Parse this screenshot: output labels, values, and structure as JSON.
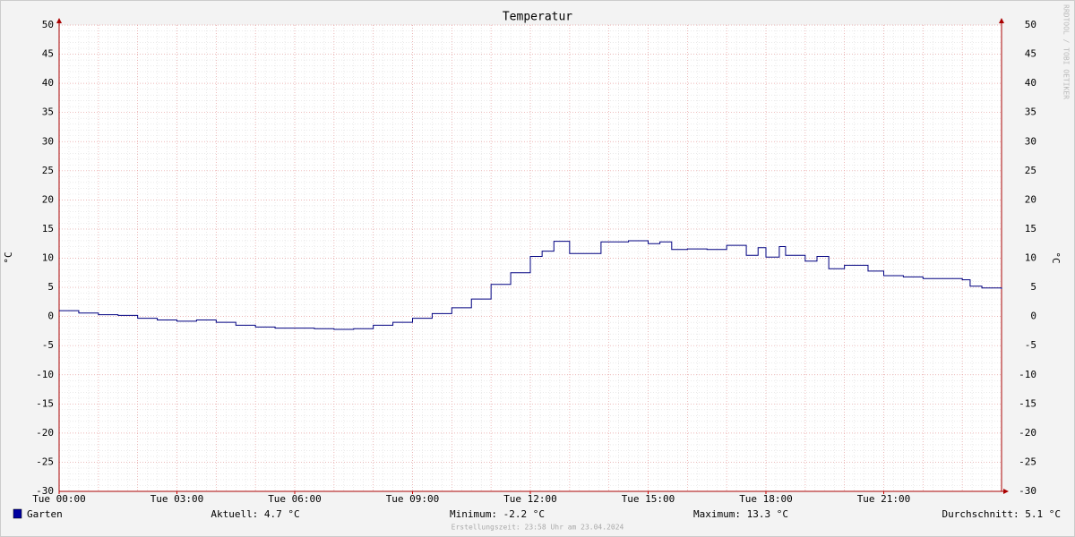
{
  "chart_data": {
    "type": "line",
    "title": "Temperatur",
    "ylabel": "°C",
    "y2label": "°C",
    "watermark": "RRDTOOL / TOBI OETIKER",
    "x": [
      0,
      0.5,
      1,
      1.5,
      2,
      2.5,
      3,
      3.5,
      4,
      4.5,
      5,
      5.5,
      6,
      6.5,
      7,
      7.5,
      8,
      8.5,
      9,
      9.5,
      10,
      10.5,
      11,
      11.5,
      12,
      12.3,
      12.6,
      13,
      13.5,
      13.8,
      14.5,
      15,
      15.3,
      15.6,
      16,
      16.5,
      17,
      17.5,
      17.8,
      18,
      18.34,
      18.5,
      19,
      19.3,
      19.6,
      20,
      20.3,
      20.6,
      21,
      21.5,
      22,
      22.5,
      23,
      23.2,
      23.5,
      24
    ],
    "series": [
      {
        "name": "Garten",
        "color": "#000080",
        "legend_color": "#0000a0",
        "values": [
          1.0,
          0.6,
          0.3,
          0.2,
          -0.3,
          -0.6,
          -0.8,
          -0.6,
          -1.0,
          -1.5,
          -1.8,
          -2.0,
          -2.0,
          -2.1,
          -2.2,
          -2.1,
          -1.5,
          -1.0,
          -0.3,
          0.5,
          1.5,
          3.0,
          5.5,
          7.5,
          10.3,
          11.2,
          12.9,
          10.8,
          10.8,
          12.8,
          13.0,
          12.5,
          12.8,
          11.5,
          11.6,
          11.5,
          12.2,
          10.5,
          11.8,
          10.2,
          12.0,
          10.5,
          9.5,
          10.3,
          8.2,
          8.8,
          8.8,
          7.8,
          7.0,
          6.8,
          6.5,
          6.5,
          6.3,
          5.2,
          4.9,
          4.7
        ]
      }
    ],
    "xlim": [
      0,
      24
    ],
    "xticks": [
      {
        "value": 0,
        "label": "Tue 00:00"
      },
      {
        "value": 3,
        "label": "Tue 03:00"
      },
      {
        "value": 6,
        "label": "Tue 06:00"
      },
      {
        "value": 9,
        "label": "Tue 09:00"
      },
      {
        "value": 12,
        "label": "Tue 12:00"
      },
      {
        "value": 15,
        "label": "Tue 15:00"
      },
      {
        "value": 18,
        "label": "Tue 18:00"
      },
      {
        "value": 21,
        "label": "Tue 21:00"
      }
    ],
    "ylim": [
      -30,
      50
    ],
    "yticks": [
      -30,
      -25,
      -20,
      -15,
      -10,
      -5,
      0,
      5,
      10,
      15,
      20,
      25,
      30,
      35,
      40,
      45,
      50
    ],
    "grid": true,
    "stats": [
      "Aktuell: 4.7 °C",
      "Minimum: -2.2 °C",
      "Maximum: 13.3 °C",
      "Durchschnitt: 5.1 °C"
    ],
    "footer": "Erstellungszeit: 23:58 Uhr am 23.04.2024"
  }
}
